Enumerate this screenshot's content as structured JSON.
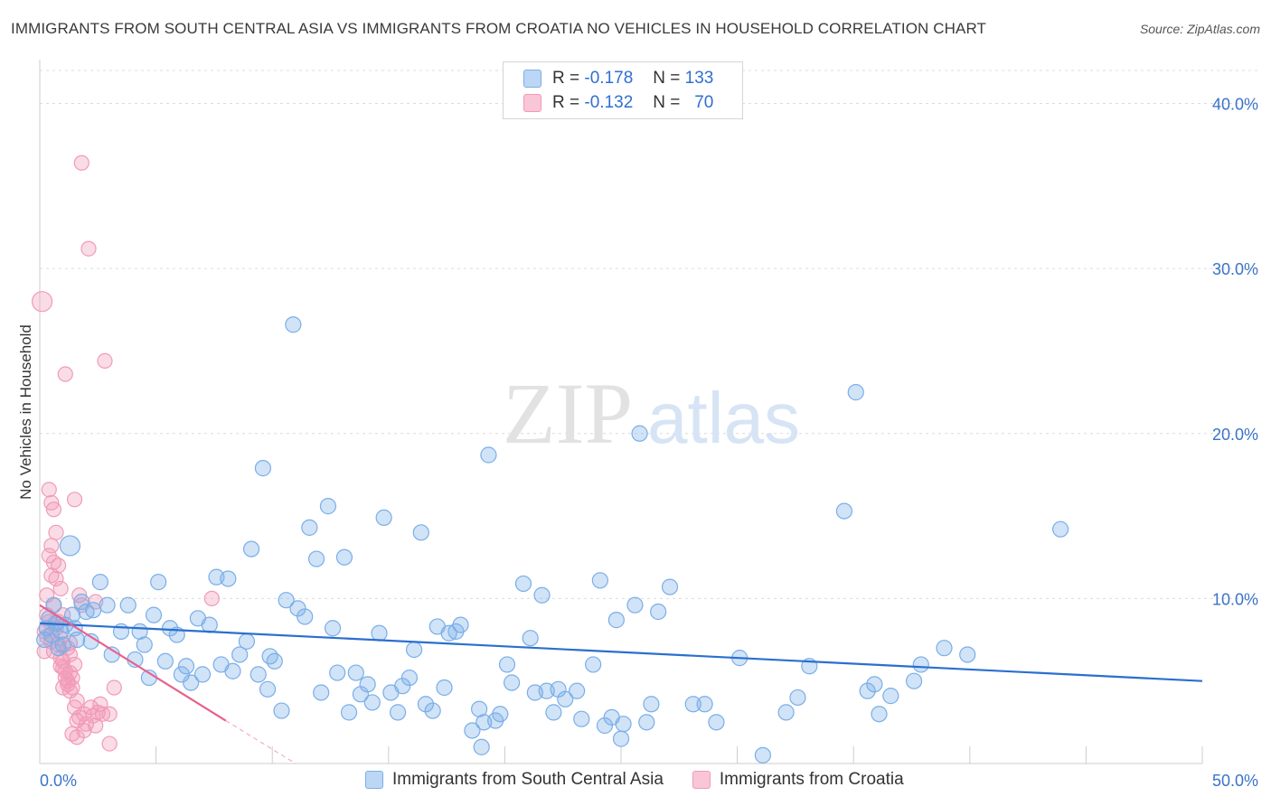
{
  "title": "IMMIGRANTS FROM SOUTH CENTRAL ASIA VS IMMIGRANTS FROM CROATIA NO VEHICLES IN HOUSEHOLD CORRELATION CHART",
  "source": "Source: ZipAtlas.com",
  "legend": {
    "r_label": "R =",
    "n_label": "N =",
    "rows": [
      {
        "r": "-0.178",
        "n": "133"
      },
      {
        "r": "-0.132",
        "n": "70"
      }
    ]
  },
  "watermark": {
    "part1": "ZIP",
    "part2": "atlas"
  },
  "chart_data": {
    "type": "scatter",
    "title": "IMMIGRANTS FROM SOUTH CENTRAL ASIA VS IMMIGRANTS FROM CROATIA NO VEHICLES IN HOUSEHOLD CORRELATION CHART",
    "xlabel": "",
    "ylabel": "No Vehicles in Household",
    "xlim": [
      0,
      50
    ],
    "ylim": [
      0,
      42
    ],
    "x_tick_labels": [
      "0.0%",
      "50.0%"
    ],
    "y_ticks": [
      10,
      20,
      30,
      40
    ],
    "y_tick_labels": [
      "10.0%",
      "20.0%",
      "30.0%",
      "40.0%"
    ],
    "colors": {
      "blue": "#7aaee8",
      "blue_line": "#2a6fd0",
      "pink": "#f29ab8",
      "pink_line": "#e8608e"
    },
    "series": [
      {
        "name": "Immigrants from South Central Asia",
        "color": "#7aaee8",
        "r": -0.178,
        "n": 133,
        "trend": {
          "x0": 0,
          "y0": 8.5,
          "x1": 50,
          "y1": 5.0
        },
        "points": [
          [
            0.2,
            7.5
          ],
          [
            0.3,
            8.2
          ],
          [
            0.4,
            8.8
          ],
          [
            0.5,
            7.8
          ],
          [
            0.6,
            9.6
          ],
          [
            0.7,
            8.5
          ],
          [
            0.8,
            7.0
          ],
          [
            0.9,
            8.0
          ],
          [
            1.0,
            7.2
          ],
          [
            1.1,
            8.4
          ],
          [
            1.3,
            13.2
          ],
          [
            1.5,
            8.2
          ],
          [
            1.6,
            7.5
          ],
          [
            1.8,
            9.8
          ],
          [
            2.0,
            9.2
          ],
          [
            2.3,
            9.3
          ],
          [
            2.6,
            11.0
          ],
          [
            2.9,
            9.6
          ],
          [
            3.1,
            6.6
          ],
          [
            3.5,
            8.0
          ],
          [
            3.8,
            9.6
          ],
          [
            4.1,
            6.3
          ],
          [
            4.3,
            8.0
          ],
          [
            4.5,
            7.2
          ],
          [
            4.7,
            5.2
          ],
          [
            4.9,
            9.0
          ],
          [
            5.1,
            11.0
          ],
          [
            5.4,
            6.2
          ],
          [
            5.6,
            8.2
          ],
          [
            5.9,
            7.8
          ],
          [
            6.1,
            5.4
          ],
          [
            6.3,
            5.9
          ],
          [
            6.5,
            4.9
          ],
          [
            6.8,
            8.8
          ],
          [
            7.0,
            5.4
          ],
          [
            7.3,
            8.4
          ],
          [
            7.6,
            11.3
          ],
          [
            7.8,
            6.0
          ],
          [
            8.1,
            11.2
          ],
          [
            8.3,
            5.6
          ],
          [
            8.6,
            6.6
          ],
          [
            8.9,
            7.4
          ],
          [
            9.1,
            13.0
          ],
          [
            9.4,
            5.4
          ],
          [
            9.6,
            17.9
          ],
          [
            9.8,
            4.5
          ],
          [
            10.1,
            6.2
          ],
          [
            10.4,
            3.2
          ],
          [
            10.6,
            9.9
          ],
          [
            10.9,
            26.6
          ],
          [
            11.1,
            9.4
          ],
          [
            11.4,
            8.9
          ],
          [
            11.6,
            14.3
          ],
          [
            11.9,
            12.4
          ],
          [
            12.1,
            4.3
          ],
          [
            12.4,
            15.6
          ],
          [
            12.6,
            8.2
          ],
          [
            12.8,
            5.5
          ],
          [
            13.1,
            12.5
          ],
          [
            13.3,
            3.1
          ],
          [
            13.6,
            5.5
          ],
          [
            13.8,
            4.2
          ],
          [
            14.1,
            4.8
          ],
          [
            14.3,
            3.7
          ],
          [
            14.6,
            7.9
          ],
          [
            14.8,
            14.9
          ],
          [
            15.1,
            4.3
          ],
          [
            15.4,
            3.1
          ],
          [
            15.6,
            4.7
          ],
          [
            15.9,
            5.2
          ],
          [
            16.1,
            6.9
          ],
          [
            16.4,
            14.0
          ],
          [
            16.6,
            3.6
          ],
          [
            16.9,
            3.2
          ],
          [
            17.1,
            8.3
          ],
          [
            17.4,
            4.6
          ],
          [
            17.6,
            7.9
          ],
          [
            17.9,
            8.0
          ],
          [
            18.1,
            8.4
          ],
          [
            18.6,
            2.0
          ],
          [
            18.9,
            3.3
          ],
          [
            19.1,
            2.5
          ],
          [
            19.3,
            18.7
          ],
          [
            19.6,
            2.6
          ],
          [
            19.8,
            3.0
          ],
          [
            20.1,
            6.0
          ],
          [
            20.3,
            4.9
          ],
          [
            20.8,
            10.9
          ],
          [
            21.1,
            7.6
          ],
          [
            21.3,
            4.3
          ],
          [
            21.6,
            10.2
          ],
          [
            21.8,
            4.4
          ],
          [
            22.1,
            3.1
          ],
          [
            22.3,
            4.5
          ],
          [
            22.6,
            3.9
          ],
          [
            23.1,
            4.4
          ],
          [
            23.3,
            2.7
          ],
          [
            23.8,
            6.0
          ],
          [
            24.1,
            11.1
          ],
          [
            24.3,
            2.3
          ],
          [
            24.6,
            2.8
          ],
          [
            24.8,
            8.7
          ],
          [
            25.1,
            2.4
          ],
          [
            25.6,
            9.6
          ],
          [
            25.8,
            20.0
          ],
          [
            26.1,
            2.5
          ],
          [
            26.3,
            3.6
          ],
          [
            26.6,
            9.2
          ],
          [
            27.1,
            10.7
          ],
          [
            28.1,
            3.6
          ],
          [
            28.6,
            3.6
          ],
          [
            29.1,
            2.5
          ],
          [
            30.1,
            6.4
          ],
          [
            31.1,
            0.5
          ],
          [
            32.1,
            3.1
          ],
          [
            32.6,
            4.0
          ],
          [
            33.1,
            5.9
          ],
          [
            34.6,
            15.3
          ],
          [
            35.1,
            22.5
          ],
          [
            35.6,
            4.4
          ],
          [
            35.9,
            4.8
          ],
          [
            36.1,
            3.0
          ],
          [
            36.6,
            4.1
          ],
          [
            37.6,
            5.0
          ],
          [
            37.9,
            6.0
          ],
          [
            38.9,
            7.0
          ],
          [
            39.9,
            6.6
          ],
          [
            43.9,
            14.2
          ],
          [
            1.4,
            9.0
          ],
          [
            2.2,
            7.4
          ],
          [
            25.0,
            1.5
          ],
          [
            19.0,
            1.0
          ],
          [
            9.9,
            6.5
          ]
        ]
      },
      {
        "name": "Immigrants from Croatia",
        "color": "#f29ab8",
        "r": -0.132,
        "n": 70,
        "trend": {
          "x0": 0,
          "y0": 9.6,
          "x1": 8,
          "y1": 2.6,
          "dash_x1": 11,
          "dash_y1": 0
        },
        "points": [
          [
            0.1,
            28.0
          ],
          [
            0.2,
            8.0
          ],
          [
            0.3,
            10.2
          ],
          [
            0.4,
            12.6
          ],
          [
            0.5,
            11.4
          ],
          [
            0.6,
            9.6
          ],
          [
            0.7,
            8.2
          ],
          [
            0.8,
            7.2
          ],
          [
            0.9,
            6.4
          ],
          [
            1.0,
            5.8
          ],
          [
            1.1,
            5.2
          ],
          [
            1.2,
            4.8
          ],
          [
            1.3,
            5.5
          ],
          [
            1.4,
            4.6
          ],
          [
            1.5,
            6.0
          ],
          [
            1.6,
            3.8
          ],
          [
            1.7,
            2.8
          ],
          [
            1.8,
            36.4
          ],
          [
            1.9,
            3.0
          ],
          [
            2.0,
            2.4
          ],
          [
            2.1,
            31.2
          ],
          [
            2.2,
            3.4
          ],
          [
            2.3,
            2.9
          ],
          [
            2.4,
            2.3
          ],
          [
            2.5,
            3.1
          ],
          [
            2.6,
            3.6
          ],
          [
            2.7,
            3.0
          ],
          [
            2.8,
            24.4
          ],
          [
            3.0,
            3.0
          ],
          [
            3.2,
            4.6
          ],
          [
            0.2,
            6.8
          ],
          [
            0.3,
            7.7
          ],
          [
            0.4,
            16.6
          ],
          [
            0.5,
            15.8
          ],
          [
            0.6,
            15.4
          ],
          [
            0.7,
            14.0
          ],
          [
            0.8,
            12.0
          ],
          [
            0.9,
            10.6
          ],
          [
            1.0,
            9.0
          ],
          [
            1.1,
            23.6
          ],
          [
            1.2,
            7.0
          ],
          [
            1.3,
            6.6
          ],
          [
            1.4,
            5.2
          ],
          [
            1.5,
            16.0
          ],
          [
            1.6,
            2.6
          ],
          [
            1.7,
            10.2
          ],
          [
            1.8,
            9.6
          ],
          [
            1.9,
            2.0
          ],
          [
            0.5,
            13.2
          ],
          [
            0.6,
            12.2
          ],
          [
            0.7,
            11.2
          ],
          [
            0.8,
            8.6
          ],
          [
            0.9,
            7.6
          ],
          [
            1.0,
            6.2
          ],
          [
            1.1,
            5.6
          ],
          [
            1.2,
            5.0
          ],
          [
            1.3,
            4.4
          ],
          [
            1.4,
            1.8
          ],
          [
            1.5,
            3.4
          ],
          [
            1.6,
            1.6
          ],
          [
            0.3,
            9.0
          ],
          [
            0.4,
            8.6
          ],
          [
            0.5,
            7.4
          ],
          [
            0.6,
            6.8
          ],
          [
            1.0,
            4.6
          ],
          [
            7.4,
            10.0
          ],
          [
            2.4,
            9.8
          ],
          [
            3.0,
            1.2
          ],
          [
            0.9,
            5.9
          ],
          [
            1.3,
            7.3
          ]
        ]
      }
    ]
  }
}
